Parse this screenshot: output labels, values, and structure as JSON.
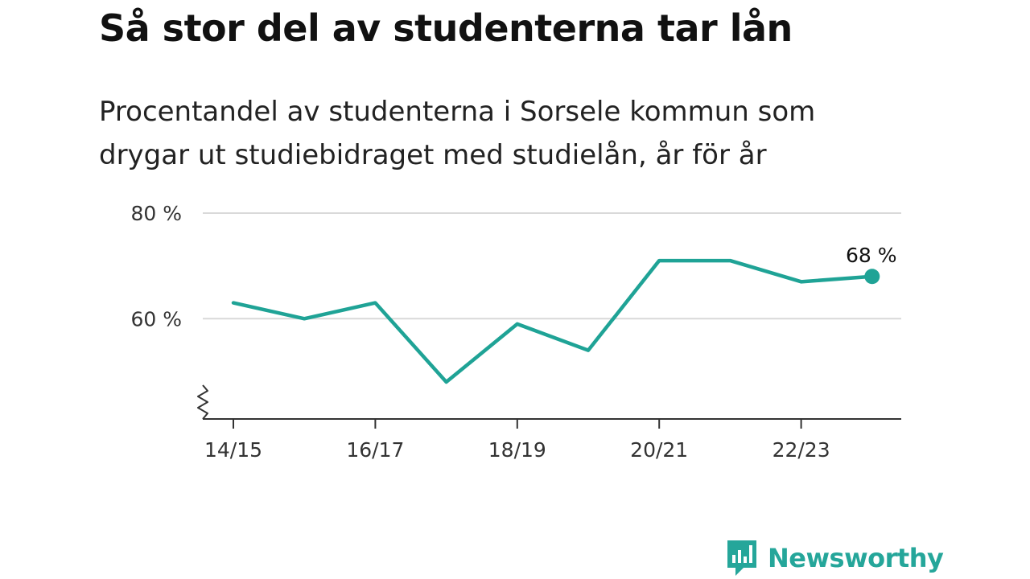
{
  "title": "Så stor del av studenterna tar lån",
  "subtitle": "Procentandel av studenterna i Sorsele kommun som drygar ut studiebidraget med studielån, år för år",
  "brand": {
    "name": "Newsworthy",
    "color": "#25a69a",
    "icon": "newsworthy-logo-icon"
  },
  "chart_data": {
    "type": "line",
    "x": [
      "14/15",
      "15/16",
      "16/17",
      "17/18",
      "18/19",
      "19/20",
      "20/21",
      "21/22",
      "22/23",
      "23/24"
    ],
    "series": [
      {
        "values": [
          63,
          60,
          63,
          48,
          59,
          54,
          71,
          71,
          67,
          68
        ],
        "color": "#1fa396"
      }
    ],
    "x_tick_labels": [
      "14/15",
      "16/17",
      "18/19",
      "20/21",
      "22/23"
    ],
    "y_ticks": [
      60,
      80
    ],
    "y_tick_labels": [
      "60 %",
      "80 %"
    ],
    "ylim": [
      41,
      80
    ],
    "y_axis_break": true,
    "grid": "horizontal",
    "end_label": "68 %"
  }
}
